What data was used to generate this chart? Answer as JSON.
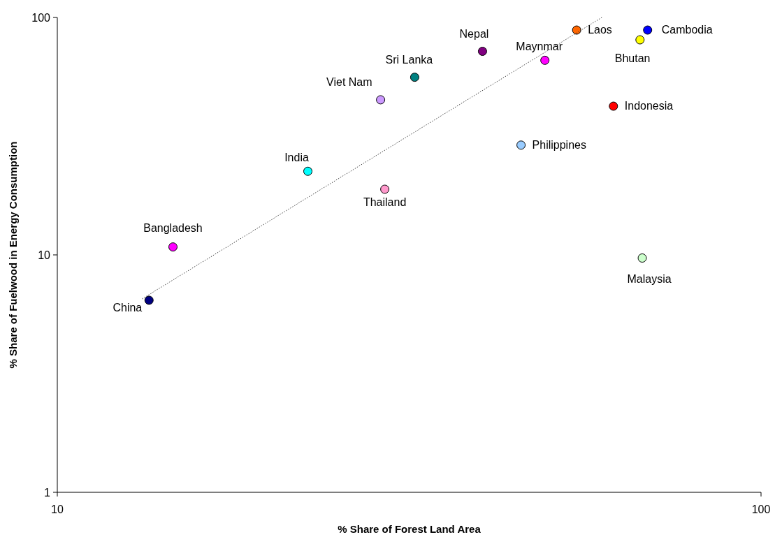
{
  "chart_data": {
    "type": "scatter",
    "xlabel": "% Share of Forest Land Area",
    "ylabel": "% Share of Fuelwood in Energy Consumption",
    "log": "xy",
    "xlim": [
      10,
      100
    ],
    "xticks": [
      10,
      100
    ],
    "ylim": [
      1,
      100
    ],
    "yticks": [
      1,
      10,
      100
    ],
    "grid": false,
    "marker": "circle",
    "series": [
      {
        "name": "China",
        "color": "#000080",
        "x": [
          13.5
        ],
        "values": [
          6.44
        ]
      },
      {
        "name": "Bangladesh",
        "color": "#ff00ff",
        "x": [
          14.6
        ],
        "values": [
          10.8
        ]
      },
      {
        "name": "India",
        "color": "#00ffff",
        "x": [
          22.7
        ],
        "values": [
          22.5
        ]
      },
      {
        "name": "Thailand",
        "color": "#ff99cc",
        "x": [
          29.2
        ],
        "values": [
          18.9
        ]
      },
      {
        "name": "Viet Nam",
        "color": "#cc99ff",
        "x": [
          28.8
        ],
        "values": [
          45
        ]
      },
      {
        "name": "Sri Lanka",
        "color": "#008080",
        "x": [
          32.2
        ],
        "values": [
          56
        ]
      },
      {
        "name": "Nepal",
        "color": "#800080",
        "x": [
          40.2
        ],
        "values": [
          72
        ]
      },
      {
        "name": "Maynmar",
        "color": "#ff00ff",
        "x": [
          49.3
        ],
        "values": [
          66
        ]
      },
      {
        "name": "Laos",
        "color": "#ff6600",
        "x": [
          54.7
        ],
        "values": [
          88.5
        ]
      },
      {
        "name": "Cambodia",
        "color": "#0000ff",
        "x": [
          69
        ],
        "values": [
          88.5
        ]
      },
      {
        "name": "Bhutan",
        "color": "#ffff00",
        "x": [
          67.3
        ],
        "values": [
          80.5
        ]
      },
      {
        "name": "Indonesia",
        "color": "#ff0000",
        "x": [
          61.7
        ],
        "values": [
          42.3
        ]
      },
      {
        "name": "Philippines",
        "color": "#99ccff",
        "x": [
          45.6
        ],
        "values": [
          29
        ]
      },
      {
        "name": "Malaysia",
        "color": "#ccffcc",
        "x": [
          67.8
        ],
        "values": [
          9.7
        ]
      },
      {
        "type": "line",
        "color": "#404040",
        "line_style": "dotted",
        "marker": "none",
        "x": [
          13.2,
          59.4
        ],
        "values": [
          6.53,
          100
        ]
      }
    ]
  }
}
